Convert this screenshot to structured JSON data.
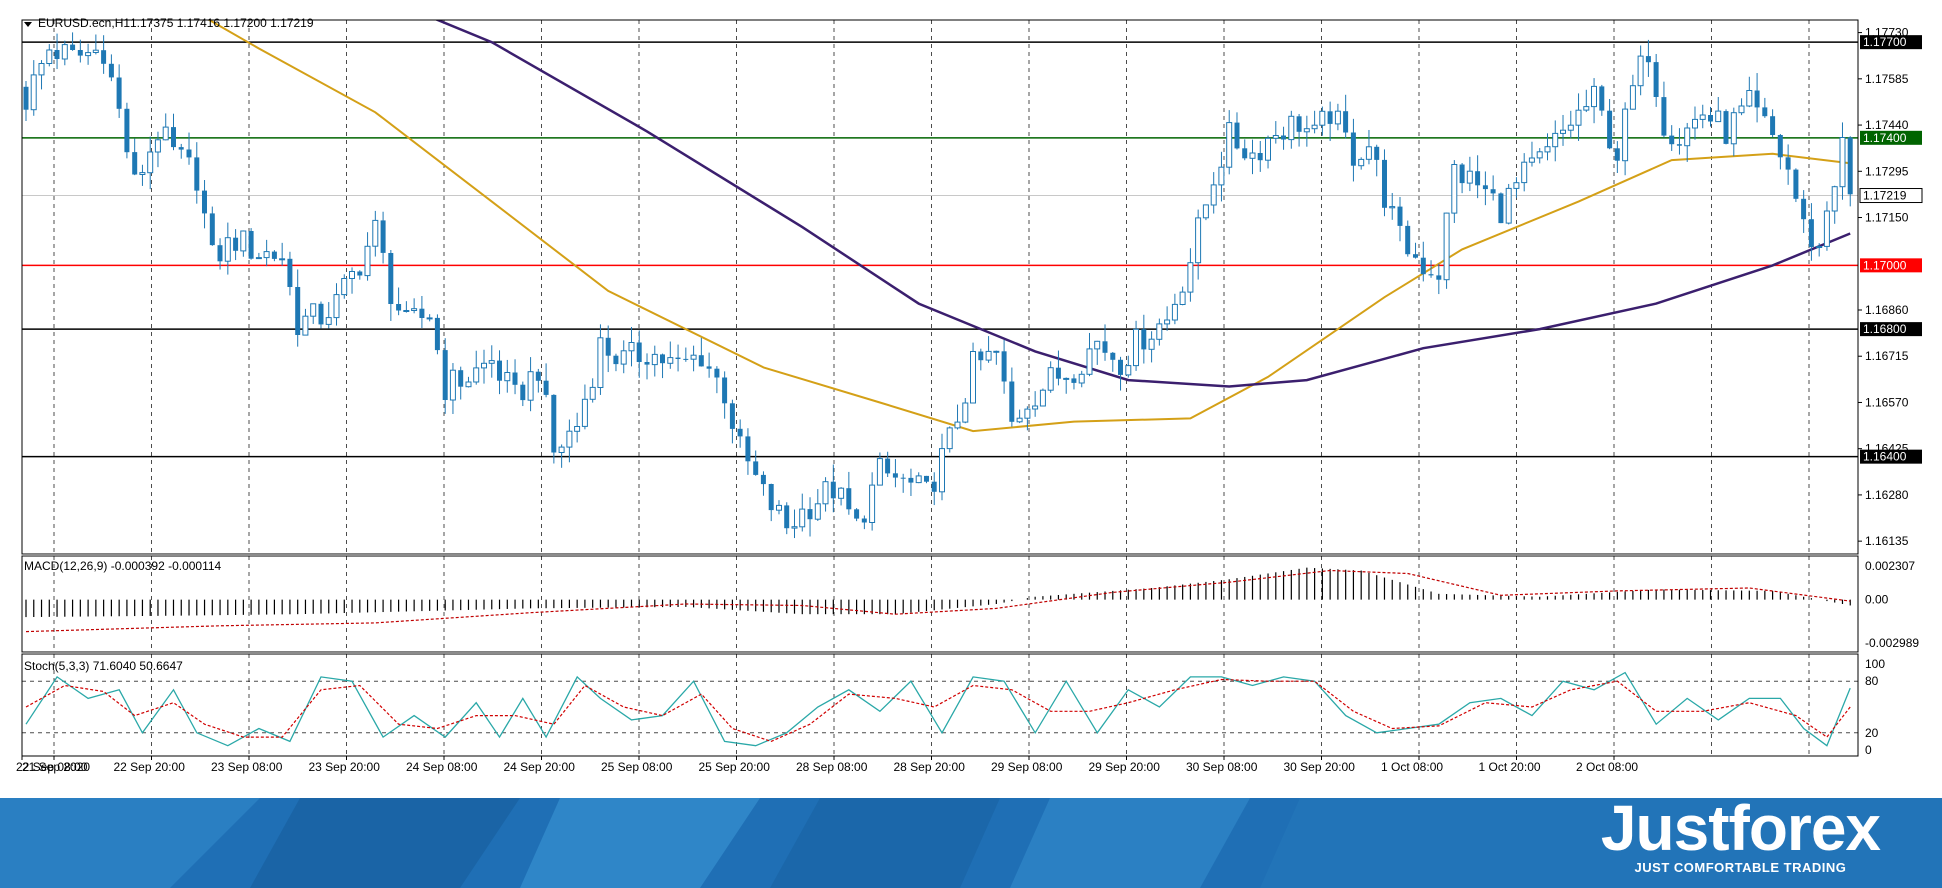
{
  "header": {
    "symbol_label": "EURUSD.ecn,H1",
    "ohlc_text": "1.17375 1.17416 1.17200 1.17219"
  },
  "price_axis": {
    "ticks": [
      "1.17730",
      "1.17585",
      "1.17440",
      "1.17295",
      "1.17150",
      "1.16860",
      "1.16715",
      "1.16570",
      "1.16425",
      "1.16280",
      "1.16135"
    ],
    "current_price_label": "1.17219",
    "current_price": 1.17219
  },
  "levels": [
    {
      "label": "1.17700",
      "price": 1.177,
      "color": "#000000",
      "label_bg": "#000000"
    },
    {
      "label": "1.17400",
      "price": 1.174,
      "color": "#006400",
      "label_bg": "#006400"
    },
    {
      "label": "1.17000",
      "price": 1.17,
      "color": "#ff0000",
      "label_bg": "#ff0000"
    },
    {
      "label": "1.16800",
      "price": 1.168,
      "color": "#000000",
      "label_bg": "#000000"
    },
    {
      "label": "1.16400",
      "price": 1.164,
      "color": "#000000",
      "label_bg": "#000000"
    }
  ],
  "time_axis": {
    "labels": [
      "21 Sep 2020",
      "22 Sep 08:00",
      "22 Sep 20:00",
      "23 Sep 08:00",
      "23 Sep 20:00",
      "24 Sep 08:00",
      "24 Sep 20:00",
      "25 Sep 08:00",
      "25 Sep 20:00",
      "28 Sep 08:00",
      "28 Sep 20:00",
      "29 Sep 08:00",
      "29 Sep 20:00",
      "30 Sep 08:00",
      "30 Sep 20:00",
      "1 Oct 08:00",
      "1 Oct 20:00",
      "2 Oct 08:00"
    ]
  },
  "macd": {
    "label": "MACD(12,26,9) -0.000392 -0.000114",
    "axis_ticks": [
      "0.002307",
      "0.00",
      "-0.002989"
    ],
    "axis_values": [
      0.002307,
      0.0,
      -0.002989
    ]
  },
  "stoch": {
    "label": "Stoch(5,3,3) 71.6040 50.6647",
    "axis_ticks": [
      "100",
      "80",
      "20",
      "0"
    ],
    "axis_values": [
      100,
      80,
      20,
      0
    ]
  },
  "colors": {
    "bull": "#1e78b4",
    "bear": "#1e78b4",
    "ma_fast": "#d4a017",
    "ma_slow": "#3b1f6e",
    "macd_signal": "#c00000",
    "stoch_main": "#2aa8a8",
    "stoch_signal": "#d00000",
    "grid": "#000000",
    "banner": "#1f6fb5"
  },
  "brand": {
    "name": "Justforex",
    "tagline": "JUST COMFORTABLE TRADING"
  },
  "chart_data": {
    "type": "candlestick",
    "symbol": "EURUSD.ecn",
    "timeframe": "H1",
    "ylim": [
      1.1606,
      1.1782
    ],
    "close_path": [
      {
        "i": 0,
        "c": 1.1752
      },
      {
        "i": 3,
        "c": 1.1768
      },
      {
        "i": 6,
        "c": 1.1765
      },
      {
        "i": 10,
        "c": 1.1768
      },
      {
        "i": 12,
        "c": 1.1748
      },
      {
        "i": 14,
        "c": 1.1725
      },
      {
        "i": 17,
        "c": 1.1742
      },
      {
        "i": 19,
        "c": 1.1735
      },
      {
        "i": 22,
        "c": 1.1728
      },
      {
        "i": 24,
        "c": 1.1702
      },
      {
        "i": 27,
        "c": 1.1708
      },
      {
        "i": 30,
        "c": 1.1704
      },
      {
        "i": 33,
        "c": 1.1703
      },
      {
        "i": 35,
        "c": 1.1682
      },
      {
        "i": 38,
        "c": 1.1684
      },
      {
        "i": 40,
        "c": 1.1688
      },
      {
        "i": 43,
        "c": 1.1701
      },
      {
        "i": 45,
        "c": 1.1711
      },
      {
        "i": 47,
        "c": 1.1692
      },
      {
        "i": 49,
        "c": 1.1681
      },
      {
        "i": 52,
        "c": 1.1685
      },
      {
        "i": 54,
        "c": 1.1662
      },
      {
        "i": 57,
        "c": 1.1665
      },
      {
        "i": 60,
        "c": 1.167
      },
      {
        "i": 63,
        "c": 1.1658
      },
      {
        "i": 66,
        "c": 1.1668
      },
      {
        "i": 68,
        "c": 1.1641
      },
      {
        "i": 71,
        "c": 1.165
      },
      {
        "i": 74,
        "c": 1.1675
      },
      {
        "i": 77,
        "c": 1.167
      },
      {
        "i": 80,
        "c": 1.1673
      },
      {
        "i": 84,
        "c": 1.1668
      },
      {
        "i": 87,
        "c": 1.1672
      },
      {
        "i": 90,
        "c": 1.166
      },
      {
        "i": 92,
        "c": 1.1642
      },
      {
        "i": 95,
        "c": 1.1628
      },
      {
        "i": 98,
        "c": 1.1618
      },
      {
        "i": 101,
        "c": 1.1625
      },
      {
        "i": 104,
        "c": 1.163
      },
      {
        "i": 107,
        "c": 1.1618
      },
      {
        "i": 110,
        "c": 1.1635
      },
      {
        "i": 113,
        "c": 1.1632
      },
      {
        "i": 116,
        "c": 1.1628
      },
      {
        "i": 119,
        "c": 1.1645
      },
      {
        "i": 122,
        "c": 1.1668
      },
      {
        "i": 125,
        "c": 1.1672
      },
      {
        "i": 127,
        "c": 1.165
      },
      {
        "i": 129,
        "c": 1.1658
      },
      {
        "i": 132,
        "c": 1.1664
      },
      {
        "i": 135,
        "c": 1.1668
      },
      {
        "i": 138,
        "c": 1.1676
      },
      {
        "i": 141,
        "c": 1.167
      },
      {
        "i": 144,
        "c": 1.1678
      },
      {
        "i": 147,
        "c": 1.1683
      },
      {
        "i": 150,
        "c": 1.1702
      },
      {
        "i": 153,
        "c": 1.1728
      },
      {
        "i": 155,
        "c": 1.174
      },
      {
        "i": 158,
        "c": 1.1735
      },
      {
        "i": 161,
        "c": 1.1742
      },
      {
        "i": 164,
        "c": 1.1745
      },
      {
        "i": 166,
        "c": 1.174
      },
      {
        "i": 168,
        "c": 1.1748
      },
      {
        "i": 171,
        "c": 1.1735
      },
      {
        "i": 173,
        "c": 1.1738
      },
      {
        "i": 175,
        "c": 1.1722
      },
      {
        "i": 177,
        "c": 1.1708
      },
      {
        "i": 180,
        "c": 1.17
      },
      {
        "i": 182,
        "c": 1.1698
      },
      {
        "i": 184,
        "c": 1.173
      },
      {
        "i": 187,
        "c": 1.1725
      },
      {
        "i": 190,
        "c": 1.1718
      },
      {
        "i": 193,
        "c": 1.1728
      },
      {
        "i": 196,
        "c": 1.1735
      },
      {
        "i": 199,
        "c": 1.1745
      },
      {
        "i": 202,
        "c": 1.1752
      },
      {
        "i": 205,
        "c": 1.1735
      },
      {
        "i": 207,
        "c": 1.1755
      },
      {
        "i": 209,
        "c": 1.1768
      },
      {
        "i": 211,
        "c": 1.1745
      },
      {
        "i": 213,
        "c": 1.174
      },
      {
        "i": 216,
        "c": 1.1748
      },
      {
        "i": 219,
        "c": 1.1742
      },
      {
        "i": 222,
        "c": 1.175
      },
      {
        "i": 225,
        "c": 1.174
      },
      {
        "i": 227,
        "c": 1.173
      },
      {
        "i": 229,
        "c": 1.1712
      },
      {
        "i": 231,
        "c": 1.1705
      },
      {
        "i": 232,
        "c": 1.1718
      },
      {
        "i": 234,
        "c": 1.1737
      },
      {
        "i": 235,
        "c": 1.17219
      }
    ],
    "ma_fast": [
      {
        "i": 0,
        "v": 1.181
      },
      {
        "i": 30,
        "v": 1.1768
      },
      {
        "i": 45,
        "v": 1.1748
      },
      {
        "i": 60,
        "v": 1.172
      },
      {
        "i": 75,
        "v": 1.1692
      },
      {
        "i": 95,
        "v": 1.1668
      },
      {
        "i": 110,
        "v": 1.1657
      },
      {
        "i": 122,
        "v": 1.1648
      },
      {
        "i": 135,
        "v": 1.1651
      },
      {
        "i": 150,
        "v": 1.1652
      },
      {
        "i": 160,
        "v": 1.1665
      },
      {
        "i": 175,
        "v": 1.169
      },
      {
        "i": 185,
        "v": 1.1705
      },
      {
        "i": 200,
        "v": 1.172
      },
      {
        "i": 212,
        "v": 1.1733
      },
      {
        "i": 225,
        "v": 1.1735
      },
      {
        "i": 235,
        "v": 1.1732
      }
    ],
    "ma_slow": [
      {
        "i": 40,
        "v": 1.179
      },
      {
        "i": 60,
        "v": 1.177
      },
      {
        "i": 80,
        "v": 1.1742
      },
      {
        "i": 100,
        "v": 1.1712
      },
      {
        "i": 115,
        "v": 1.1688
      },
      {
        "i": 130,
        "v": 1.1673
      },
      {
        "i": 142,
        "v": 1.1664
      },
      {
        "i": 155,
        "v": 1.1662
      },
      {
        "i": 165,
        "v": 1.1664
      },
      {
        "i": 180,
        "v": 1.1674
      },
      {
        "i": 195,
        "v": 1.168
      },
      {
        "i": 210,
        "v": 1.1688
      },
      {
        "i": 225,
        "v": 1.17
      },
      {
        "i": 235,
        "v": 1.171
      }
    ],
    "macd_hist": [
      {
        "i": 0,
        "v": -0.0012
      },
      {
        "i": 20,
        "v": -0.0011
      },
      {
        "i": 35,
        "v": -0.001
      },
      {
        "i": 50,
        "v": -0.0008
      },
      {
        "i": 65,
        "v": -0.0006
      },
      {
        "i": 85,
        "v": -0.0005
      },
      {
        "i": 100,
        "v": -0.001
      },
      {
        "i": 112,
        "v": -0.001
      },
      {
        "i": 125,
        "v": -0.0003
      },
      {
        "i": 130,
        "v": 0.0002
      },
      {
        "i": 145,
        "v": 0.0008
      },
      {
        "i": 155,
        "v": 0.0014
      },
      {
        "i": 165,
        "v": 0.0022
      },
      {
        "i": 172,
        "v": 0.002
      },
      {
        "i": 182,
        "v": 0.0004
      },
      {
        "i": 195,
        "v": 0.0002
      },
      {
        "i": 210,
        "v": 0.0007
      },
      {
        "i": 225,
        "v": 0.0006
      },
      {
        "i": 235,
        "v": -0.0004
      }
    ],
    "macd_signal": [
      {
        "i": 0,
        "v": -0.0022
      },
      {
        "i": 25,
        "v": -0.0018
      },
      {
        "i": 45,
        "v": -0.0016
      },
      {
        "i": 65,
        "v": -0.0009
      },
      {
        "i": 85,
        "v": -0.0003
      },
      {
        "i": 100,
        "v": -0.0004
      },
      {
        "i": 112,
        "v": -0.001
      },
      {
        "i": 125,
        "v": -0.0006
      },
      {
        "i": 140,
        "v": 0.0005
      },
      {
        "i": 155,
        "v": 0.0012
      },
      {
        "i": 168,
        "v": 0.002
      },
      {
        "i": 178,
        "v": 0.0018
      },
      {
        "i": 190,
        "v": 0.0003
      },
      {
        "i": 205,
        "v": 0.0006
      },
      {
        "i": 222,
        "v": 0.0008
      },
      {
        "i": 235,
        "v": -0.0001
      }
    ],
    "stoch_main": [
      {
        "i": 0,
        "v": 30
      },
      {
        "i": 4,
        "v": 85
      },
      {
        "i": 8,
        "v": 60
      },
      {
        "i": 12,
        "v": 70
      },
      {
        "i": 15,
        "v": 20
      },
      {
        "i": 19,
        "v": 70
      },
      {
        "i": 22,
        "v": 20
      },
      {
        "i": 26,
        "v": 5
      },
      {
        "i": 30,
        "v": 25
      },
      {
        "i": 34,
        "v": 10
      },
      {
        "i": 38,
        "v": 85
      },
      {
        "i": 42,
        "v": 80
      },
      {
        "i": 46,
        "v": 15
      },
      {
        "i": 50,
        "v": 40
      },
      {
        "i": 54,
        "v": 15
      },
      {
        "i": 58,
        "v": 55
      },
      {
        "i": 61,
        "v": 15
      },
      {
        "i": 64,
        "v": 60
      },
      {
        "i": 67,
        "v": 15
      },
      {
        "i": 71,
        "v": 85
      },
      {
        "i": 74,
        "v": 60
      },
      {
        "i": 78,
        "v": 35
      },
      {
        "i": 82,
        "v": 40
      },
      {
        "i": 86,
        "v": 80
      },
      {
        "i": 90,
        "v": 10
      },
      {
        "i": 94,
        "v": 5
      },
      {
        "i": 98,
        "v": 20
      },
      {
        "i": 102,
        "v": 50
      },
      {
        "i": 106,
        "v": 70
      },
      {
        "i": 110,
        "v": 45
      },
      {
        "i": 114,
        "v": 80
      },
      {
        "i": 118,
        "v": 20
      },
      {
        "i": 122,
        "v": 85
      },
      {
        "i": 126,
        "v": 80
      },
      {
        "i": 130,
        "v": 20
      },
      {
        "i": 134,
        "v": 80
      },
      {
        "i": 138,
        "v": 20
      },
      {
        "i": 142,
        "v": 70
      },
      {
        "i": 146,
        "v": 50
      },
      {
        "i": 150,
        "v": 85
      },
      {
        "i": 154,
        "v": 85
      },
      {
        "i": 158,
        "v": 75
      },
      {
        "i": 162,
        "v": 85
      },
      {
        "i": 166,
        "v": 80
      },
      {
        "i": 170,
        "v": 40
      },
      {
        "i": 174,
        "v": 20
      },
      {
        "i": 178,
        "v": 25
      },
      {
        "i": 182,
        "v": 30
      },
      {
        "i": 186,
        "v": 55
      },
      {
        "i": 190,
        "v": 60
      },
      {
        "i": 194,
        "v": 40
      },
      {
        "i": 198,
        "v": 80
      },
      {
        "i": 202,
        "v": 70
      },
      {
        "i": 206,
        "v": 90
      },
      {
        "i": 210,
        "v": 30
      },
      {
        "i": 214,
        "v": 60
      },
      {
        "i": 218,
        "v": 35
      },
      {
        "i": 222,
        "v": 60
      },
      {
        "i": 226,
        "v": 60
      },
      {
        "i": 229,
        "v": 25
      },
      {
        "i": 232,
        "v": 5
      },
      {
        "i": 235,
        "v": 72
      }
    ],
    "stoch_signal": [
      {
        "i": 0,
        "v": 50
      },
      {
        "i": 5,
        "v": 75
      },
      {
        "i": 10,
        "v": 68
      },
      {
        "i": 14,
        "v": 40
      },
      {
        "i": 19,
        "v": 55
      },
      {
        "i": 23,
        "v": 30
      },
      {
        "i": 28,
        "v": 15
      },
      {
        "i": 33,
        "v": 15
      },
      {
        "i": 38,
        "v": 70
      },
      {
        "i": 43,
        "v": 75
      },
      {
        "i": 48,
        "v": 30
      },
      {
        "i": 53,
        "v": 25
      },
      {
        "i": 58,
        "v": 40
      },
      {
        "i": 63,
        "v": 40
      },
      {
        "i": 68,
        "v": 30
      },
      {
        "i": 72,
        "v": 75
      },
      {
        "i": 77,
        "v": 50
      },
      {
        "i": 82,
        "v": 40
      },
      {
        "i": 87,
        "v": 65
      },
      {
        "i": 91,
        "v": 25
      },
      {
        "i": 96,
        "v": 10
      },
      {
        "i": 101,
        "v": 30
      },
      {
        "i": 106,
        "v": 65
      },
      {
        "i": 112,
        "v": 60
      },
      {
        "i": 117,
        "v": 50
      },
      {
        "i": 122,
        "v": 75
      },
      {
        "i": 127,
        "v": 70
      },
      {
        "i": 132,
        "v": 45
      },
      {
        "i": 137,
        "v": 45
      },
      {
        "i": 142,
        "v": 55
      },
      {
        "i": 148,
        "v": 70
      },
      {
        "i": 154,
        "v": 82
      },
      {
        "i": 160,
        "v": 80
      },
      {
        "i": 166,
        "v": 80
      },
      {
        "i": 171,
        "v": 45
      },
      {
        "i": 176,
        "v": 25
      },
      {
        "i": 182,
        "v": 28
      },
      {
        "i": 188,
        "v": 55
      },
      {
        "i": 194,
        "v": 50
      },
      {
        "i": 199,
        "v": 70
      },
      {
        "i": 205,
        "v": 80
      },
      {
        "i": 210,
        "v": 45
      },
      {
        "i": 216,
        "v": 45
      },
      {
        "i": 222,
        "v": 55
      },
      {
        "i": 228,
        "v": 40
      },
      {
        "i": 232,
        "v": 15
      },
      {
        "i": 235,
        "v": 50
      }
    ],
    "n_bars": 236
  }
}
